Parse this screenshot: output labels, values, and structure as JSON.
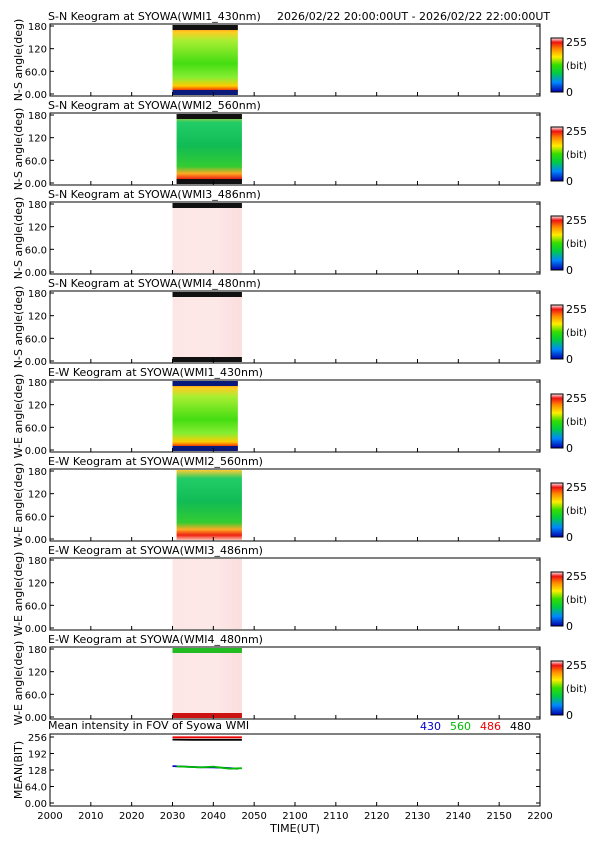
{
  "header": {
    "time_range": "2026/02/22 20:00:00UT - 2026/02/22 22:00:00UT"
  },
  "colorbar": {
    "max_label": "255",
    "min_label": "0",
    "unit_label": "(bit)"
  },
  "panels": [
    {
      "title": "S-N Keogram at SYOWA(WMI1_430nm)",
      "ylabel": "N-S angle(deg)",
      "yticks": [
        "180",
        "120",
        "60.0",
        "0.00"
      ],
      "palette": "green",
      "top_band": "#111111",
      "bottom_band": "#0a1a7a",
      "data_start": 2030,
      "data_end": 2046
    },
    {
      "title": "S-N Keogram at SYOWA(WMI2_560nm)",
      "ylabel": "N-S angle(deg)",
      "yticks": [
        "180",
        "120",
        "60.0",
        "0.00"
      ],
      "palette": "green2",
      "top_band": "#111111",
      "bottom_band": "#111111",
      "data_start": 2031,
      "data_end": 2047
    },
    {
      "title": "S-N Keogram at SYOWA(WMI3_486nm)",
      "ylabel": "N-S angle(deg)",
      "yticks": [
        "180",
        "120",
        "60.0",
        "0.00"
      ],
      "palette": "pink",
      "top_band": "#111111",
      "bottom_band": "",
      "data_start": 2030,
      "data_end": 2047
    },
    {
      "title": "S-N Keogram at SYOWA(WMI4_480nm)",
      "ylabel": "N-S angle(deg)",
      "yticks": [
        "180",
        "120",
        "60.0",
        "0.00"
      ],
      "palette": "pink",
      "top_band": "#111111",
      "bottom_band": "#111111",
      "data_start": 2030,
      "data_end": 2047
    },
    {
      "title": "E-W Keogram at SYOWA(WMI1_430nm)",
      "ylabel": "W-E angle(deg)",
      "yticks": [
        "180",
        "120",
        "60.0",
        "0.00"
      ],
      "palette": "green",
      "top_band": "#0a1a7a",
      "bottom_band": "#0a1a7a",
      "data_start": 2030,
      "data_end": 2046
    },
    {
      "title": "E-W Keogram at SYOWA(WMI2_560nm)",
      "ylabel": "W-E angle(deg)",
      "yticks": [
        "180",
        "120",
        "60.0",
        "0.00"
      ],
      "palette": "green2",
      "top_band": "",
      "bottom_band": "",
      "data_start": 2031,
      "data_end": 2047
    },
    {
      "title": "E-W Keogram at SYOWA(WMI3_486nm)",
      "ylabel": "W-E angle(deg)",
      "yticks": [
        "180",
        "120",
        "60.0",
        "0.00"
      ],
      "palette": "pink",
      "top_band": "",
      "bottom_band": "",
      "data_start": 2030,
      "data_end": 2047
    },
    {
      "title": "E-W Keogram at SYOWA(WMI4_480nm)",
      "ylabel": "W-E angle(deg)",
      "yticks": [
        "180",
        "120",
        "60.0",
        "0.00"
      ],
      "palette": "pink",
      "top_band": "#22bb22",
      "bottom_band": "#cc1111",
      "data_start": 2030,
      "data_end": 2047
    }
  ],
  "chart_data": {
    "type": "line",
    "title": "Mean intensity in FOV of Syowa WMI",
    "xlabel": "TIME(UT)",
    "ylabel": "MEAN(BIT)",
    "xticks": [
      "2000",
      "2010",
      "2020",
      "2030",
      "2040",
      "2050",
      "2100",
      "2110",
      "2120",
      "2130",
      "2140",
      "2150",
      "2200"
    ],
    "yticks": [
      "256",
      "192",
      "128",
      "64.0",
      "0.00"
    ],
    "ylim": [
      0,
      256
    ],
    "legend": [
      "430",
      "560",
      "486",
      "480"
    ],
    "legend_colors": [
      "#0000cc",
      "#00bb00",
      "#ee0000",
      "#000000"
    ],
    "series": [
      {
        "name": "430",
        "color": "#0000cc",
        "x": [
          2030,
          2033,
          2036,
          2040,
          2043,
          2046
        ],
        "y": [
          143,
          141,
          139,
          138,
          136,
          133
        ]
      },
      {
        "name": "560",
        "color": "#00bb00",
        "x": [
          2031,
          2034,
          2037,
          2040,
          2042,
          2044,
          2047
        ],
        "y": [
          142,
          140,
          138,
          141,
          137,
          133,
          135
        ]
      },
      {
        "name": "486",
        "color": "#ee0000",
        "x": [
          2030,
          2035,
          2040,
          2047
        ],
        "y": [
          255,
          255,
          255,
          255
        ]
      },
      {
        "name": "480",
        "color": "#000000",
        "x": [
          2030,
          2035,
          2040,
          2047
        ],
        "y": [
          246,
          245,
          245,
          245
        ]
      }
    ]
  }
}
